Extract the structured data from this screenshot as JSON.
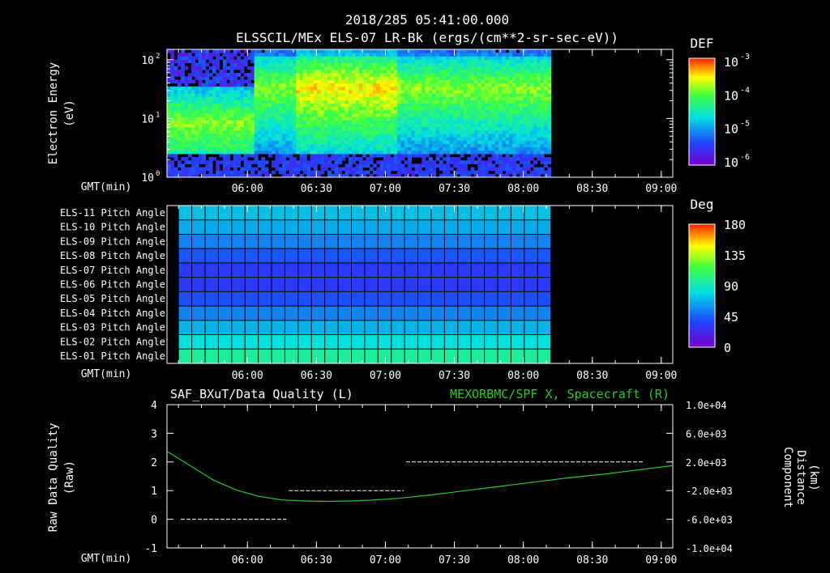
{
  "header": {
    "timestamp": "2018/285 05:41:00.000",
    "title": "ELSSCIL/MEx ELS-07 LR-Bk  (ergs/(cm**2-sr-sec-eV))"
  },
  "time_ticks": [
    "06:00",
    "06:30",
    "07:00",
    "07:30",
    "08:00",
    "08:30",
    "09:00"
  ],
  "time_axis_label": "GMT(min)",
  "chart_data": [
    {
      "type": "heatmap",
      "name": "spectrogram",
      "ylabel": "Electron Energy (eV)",
      "ylabel_lines": [
        "Electron Energy",
        "(eV)"
      ],
      "yscale": "log",
      "ylim": [
        1,
        150
      ],
      "y_tick_labels": [
        {
          "base": "10",
          "exp": "0",
          "value": 1
        },
        {
          "base": "10",
          "exp": "1",
          "value": 10
        },
        {
          "base": "10",
          "exp": "2",
          "value": 100
        }
      ],
      "time_range_min": [
        325,
        545
      ],
      "data_end_min": 492,
      "colorbar": {
        "title": "DEF",
        "scale": "log",
        "range": [
          1e-06,
          0.001
        ],
        "tick_labels": [
          {
            "base": "10",
            "exp": "-3"
          },
          {
            "base": "10",
            "exp": "-4"
          },
          {
            "base": "10",
            "exp": "-5"
          },
          {
            "base": "10",
            "exp": "-6"
          }
        ]
      }
    },
    {
      "type": "heatmap",
      "name": "pitch-angle",
      "row_labels": [
        "ELS-11 Pitch Angle",
        "ELS-10 Pitch Angle",
        "ELS-09 Pitch Angle",
        "ELS-08 Pitch Angle",
        "ELS-07 Pitch Angle",
        "ELS-06 Pitch Angle",
        "ELS-05 Pitch Angle",
        "ELS-04 Pitch Angle",
        "ELS-03 Pitch Angle",
        "ELS-02 Pitch Angle",
        "ELS-01 Pitch Angle"
      ],
      "row_values_deg": [
        72,
        66,
        55,
        42,
        33,
        33,
        40,
        55,
        68,
        82,
        96
      ],
      "data_start_min": 330,
      "data_end_min": 492,
      "colorbar": {
        "title": "Deg",
        "range": [
          0,
          180
        ],
        "tick_labels": [
          "180",
          "135",
          "90",
          "45",
          "0"
        ]
      }
    },
    {
      "type": "line",
      "name": "data-quality",
      "title_left": "SAF_BXuT/Data Quality (L)",
      "title_right": "MEXORBMC/SPF X, Spacecraft (R)",
      "ylabel_left_lines": [
        "Raw Data Quality",
        "(Raw)"
      ],
      "ylabel_right_lines": [
        "Component",
        "Distance",
        "(km)"
      ],
      "ylim_left": [
        -1,
        4
      ],
      "y_ticks_left": [
        "4",
        "3",
        "2",
        "1",
        "0",
        "-1"
      ],
      "ylim_right": [
        -10000,
        10000
      ],
      "y_ticks_right": [
        "1.0e+04",
        "6.0e+03",
        "2.0e+03",
        "-2.0e+03",
        "-6.0e+03",
        "-1.0e+04"
      ],
      "series": [
        {
          "color": "#ffffff",
          "segments": [
            {
              "t_start": 331,
              "t_end": 377,
              "value": 0
            },
            {
              "t_start": 378,
              "t_end": 428,
              "value": 1
            },
            {
              "t_start": 429,
              "t_end": 532,
              "value": 2
            }
          ]
        },
        {
          "color": "#22cc22",
          "t": [
            325,
            335,
            345,
            355,
            365,
            375,
            385,
            395,
            405,
            415,
            425,
            440,
            455,
            470,
            485,
            500,
            515,
            530,
            545
          ],
          "km": [
            3500,
            1500,
            -500,
            -1900,
            -2800,
            -3300,
            -3450,
            -3500,
            -3450,
            -3300,
            -3100,
            -2600,
            -2000,
            -1400,
            -800,
            -200,
            300,
            900,
            1500
          ]
        }
      ]
    }
  ]
}
